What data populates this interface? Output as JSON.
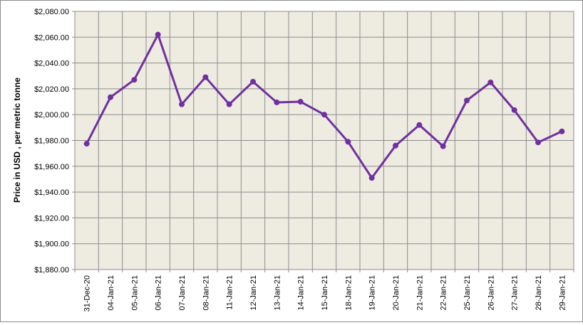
{
  "chart_data": {
    "type": "line",
    "title": "",
    "xlabel": "",
    "ylabel": "Price in USD , per metric tonne",
    "ylim": [
      1880,
      2080
    ],
    "ystep": 20,
    "grid": true,
    "legend": "none",
    "categories": [
      "31-Dec-20",
      "04-Jan-21",
      "05-Jan-21",
      "06-Jan-21",
      "07-Jan-21",
      "08-Jan-21",
      "11-Jan-21",
      "12-Jan-21",
      "13-Jan-21",
      "14-Jan-21",
      "15-Jan-21",
      "18-Jan-21",
      "19-Jan-21",
      "20-Jan-21",
      "21-Jan-21",
      "22-Jan-21",
      "25-Jan-21",
      "26-Jan-21",
      "27-Jan-21",
      "28-Jan-21",
      "29-Jan-21"
    ],
    "y_tick_labels": [
      "$1,880.00",
      "$1,900.00",
      "$1,920.00",
      "$1,940.00",
      "$1,960.00",
      "$1,980.00",
      "$2,000.00",
      "$2,020.00",
      "$2,040.00",
      "$2,060.00",
      "$2,080.00"
    ],
    "series": [
      {
        "color": "#7030a0",
        "values": [
          1977.5,
          2013.5,
          2027,
          2062,
          2008,
          2029,
          2008,
          2025.5,
          2009.5,
          2010,
          2000,
          1979,
          1951,
          1976,
          1992,
          1975.5,
          2011,
          2025,
          2003.5,
          1978.5,
          1987
        ]
      }
    ],
    "colors": {
      "plot_background": "#eeece1",
      "gridline": "#8c8c8c"
    }
  }
}
